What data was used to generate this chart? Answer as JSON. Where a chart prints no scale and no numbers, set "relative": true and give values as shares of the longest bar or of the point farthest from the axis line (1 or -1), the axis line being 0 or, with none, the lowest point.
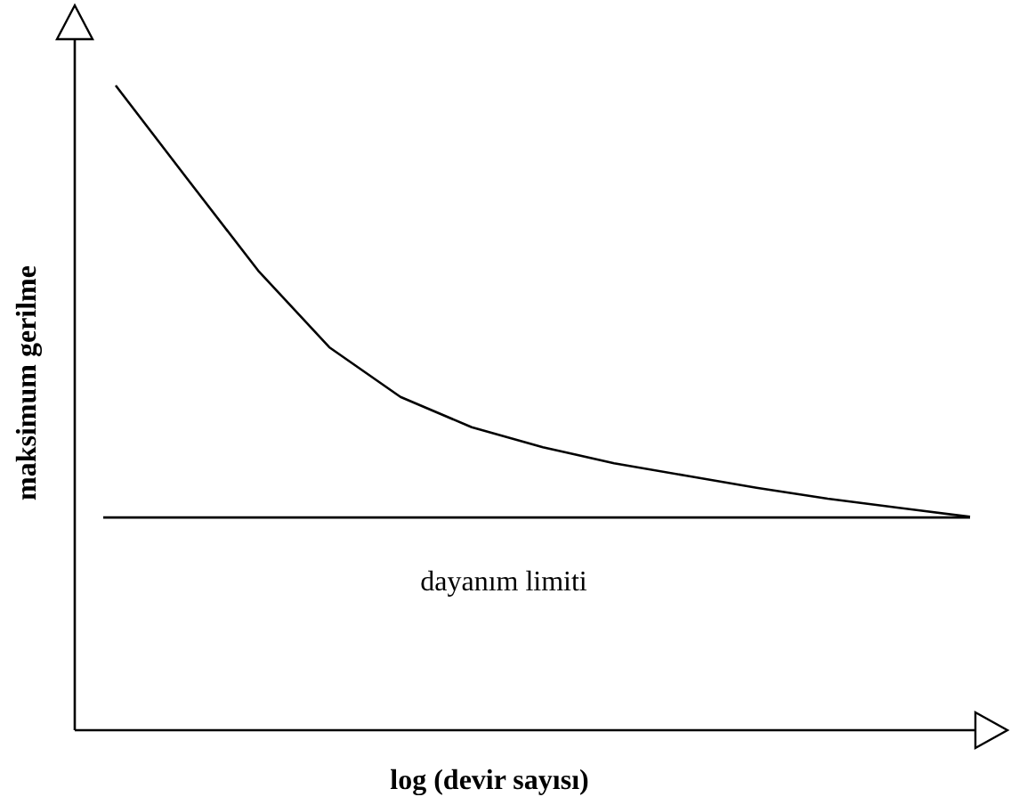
{
  "chart_data": {
    "type": "line",
    "relative": true,
    "xlabel": "log (devir sayısı)",
    "ylabel": "maksimum gerilme",
    "categories": [
      null,
      null,
      null,
      null,
      null,
      null,
      null,
      null,
      null,
      null,
      null,
      null,
      null
    ],
    "series": [
      {
        "color": "#000000",
        "values": [
          1,
          0.856,
          0.713,
          0.594,
          0.517,
          0.47,
          0.439,
          0.414,
          0.395,
          0.376,
          0.359,
          0.345,
          0.331
        ]
      }
    ],
    "ref_lines": [
      {
        "axis": "y",
        "value": 0.33,
        "label": "dayanım limiti",
        "color": "#000000"
      }
    ]
  }
}
